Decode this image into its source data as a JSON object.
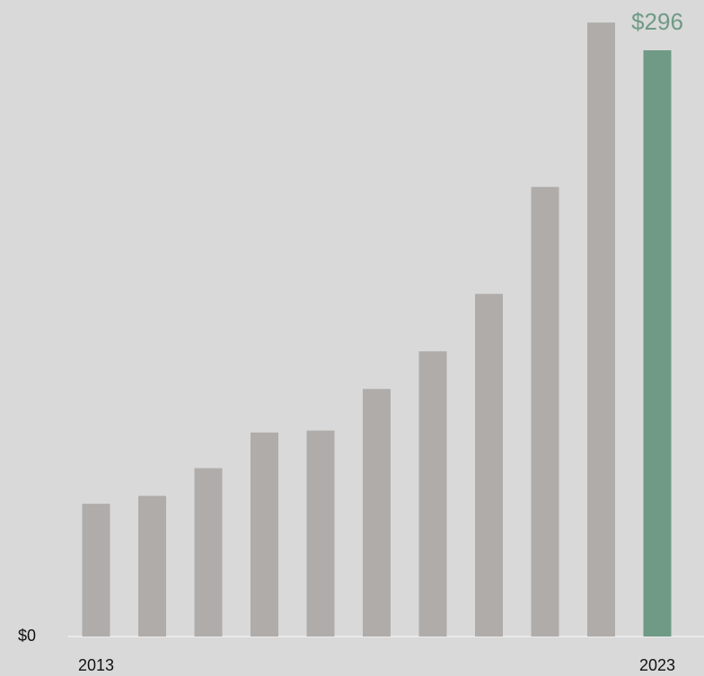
{
  "chart_data": {
    "type": "bar",
    "categories": [
      "2013",
      null,
      null,
      null,
      null,
      null,
      null,
      null,
      null,
      null,
      "2023"
    ],
    "values": [
      67,
      71,
      85,
      103,
      104,
      125,
      144,
      173,
      227,
      310,
      296
    ],
    "value_labels": [
      null,
      null,
      null,
      null,
      null,
      null,
      null,
      null,
      null,
      null,
      "$296"
    ],
    "colors": [
      "#b0acaa",
      "#b0acaa",
      "#b0acaa",
      "#b0acaa",
      "#b0acaa",
      "#b0acaa",
      "#b0acaa",
      "#b0acaa",
      "#b0acaa",
      "#b0acaa",
      "#6f9a86"
    ],
    "ylim": [
      0,
      320
    ],
    "yticks": [
      {
        "value": 0,
        "label": "$0"
      }
    ]
  }
}
